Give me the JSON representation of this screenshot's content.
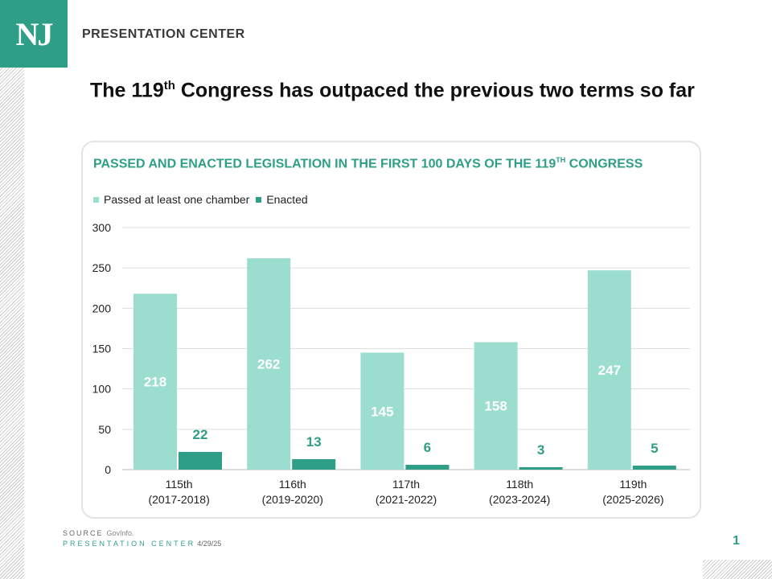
{
  "brand": {
    "logo_text": "NJ",
    "name": "PRESENTATION CENTER",
    "accent_color": "#2e9e86"
  },
  "slide": {
    "title_pre": "The 119",
    "title_sup": "th",
    "title_post": " Congress has outpaced the previous two terms so far"
  },
  "chart_data": {
    "type": "bar",
    "title_pre": "PASSED AND ENACTED LEGISLATION IN THE FIRST 100 DAYS OF THE 119",
    "title_sup": "TH",
    "title_post": " CONGRESS",
    "categories": [
      "115th\n(2017-2018)",
      "116th\n(2019-2020)",
      "117th\n(2021-2022)",
      "118th\n(2023-2024)",
      "119th\n(2025-2026)"
    ],
    "series": [
      {
        "name": "Passed at least one chamber",
        "color": "#9bded0",
        "label_color": "#ffffff",
        "values": [
          218,
          262,
          145,
          158,
          247
        ]
      },
      {
        "name": "Enacted",
        "color": "#2e9e86",
        "label_color": "#2e9e86",
        "values": [
          22,
          13,
          6,
          3,
          5
        ]
      }
    ],
    "ylim": [
      0,
      300
    ],
    "yticks": [
      0,
      50,
      100,
      150,
      200,
      250,
      300
    ],
    "grid": true,
    "legend": "top-left"
  },
  "footer": {
    "source_label": "SOURCE",
    "source_value": "GovInfo.",
    "center_label": "PRESENTATION CENTER",
    "date": "4/29/25",
    "page_number": "1"
  }
}
